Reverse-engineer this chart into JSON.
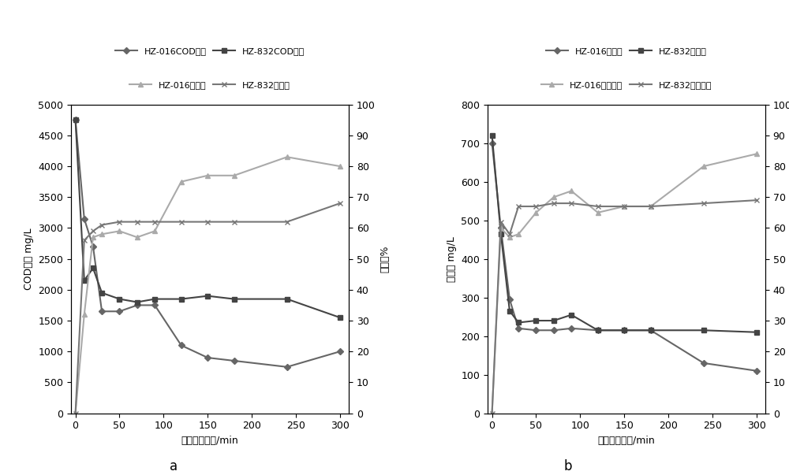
{
  "chart_a": {
    "xlabel": "静态吸附时间/min",
    "ylabel_left": "COD浓度 mg/L",
    "ylabel_right": "去除率%",
    "ylim_left": [
      0,
      5000
    ],
    "ylim_right": [
      0,
      100
    ],
    "yticks_left": [
      0,
      500,
      1000,
      1500,
      2000,
      2500,
      3000,
      3500,
      4000,
      4500,
      5000
    ],
    "yticks_right": [
      0,
      10,
      20,
      30,
      40,
      50,
      60,
      70,
      80,
      90,
      100
    ],
    "xticks": [
      0,
      50,
      100,
      150,
      200,
      250,
      300
    ],
    "xlim": [
      -5,
      310
    ],
    "legend_row1": [
      "HZ-016COD浓度",
      "HZ-832COD浓度"
    ],
    "legend_row2": [
      "HZ-016去除率",
      "HZ-832去除率"
    ],
    "hz016_cod_x": [
      0,
      10,
      20,
      30,
      50,
      70,
      90,
      120,
      150,
      180,
      240,
      300
    ],
    "hz016_cod_y": [
      4750,
      3150,
      2700,
      1650,
      1650,
      1750,
      1750,
      1100,
      900,
      850,
      750,
      1000
    ],
    "hz832_cod_x": [
      0,
      10,
      20,
      30,
      50,
      70,
      90,
      120,
      150,
      180,
      240,
      300
    ],
    "hz832_cod_y": [
      4750,
      2150,
      2350,
      1950,
      1850,
      1800,
      1850,
      1850,
      1900,
      1850,
      1850,
      1550
    ],
    "hz016_rem_x": [
      0,
      10,
      20,
      30,
      50,
      70,
      90,
      120,
      150,
      180,
      240,
      300
    ],
    "hz016_rem_y": [
      0,
      32,
      57,
      58,
      59,
      57,
      59,
      75,
      77,
      77,
      83,
      80
    ],
    "hz832_rem_x": [
      0,
      10,
      20,
      30,
      50,
      70,
      90,
      120,
      150,
      180,
      240,
      300
    ],
    "hz832_rem_y": [
      0,
      56,
      59,
      61,
      62,
      62,
      62,
      62,
      62,
      62,
      62,
      68
    ]
  },
  "chart_b": {
    "xlabel": "静态吸附时间/min",
    "ylabel_left": "酚浓度 mg/L",
    "ylabel_right": "去除率%",
    "ylim_left": [
      0,
      800
    ],
    "ylim_right": [
      0,
      100
    ],
    "yticks_left": [
      0,
      100,
      200,
      300,
      400,
      500,
      600,
      700,
      800
    ],
    "yticks_right": [
      0,
      10,
      20,
      30,
      40,
      50,
      60,
      70,
      80,
      90,
      100
    ],
    "xticks": [
      0,
      50,
      100,
      150,
      200,
      250,
      300
    ],
    "xlim": [
      -5,
      310
    ],
    "legend_row1": [
      "HZ-016酚浓度",
      "HZ-832酚浓度"
    ],
    "legend_row2": [
      "HZ-016酚去除率",
      "HZ-832酚去除率"
    ],
    "hz016_ph_x": [
      0,
      10,
      20,
      30,
      50,
      70,
      90,
      120,
      150,
      180,
      240,
      300
    ],
    "hz016_ph_y": [
      700,
      480,
      295,
      220,
      215,
      215,
      220,
      215,
      215,
      215,
      130,
      110
    ],
    "hz832_ph_x": [
      0,
      10,
      20,
      30,
      50,
      70,
      90,
      120,
      150,
      180,
      240,
      300
    ],
    "hz832_ph_y": [
      720,
      465,
      265,
      235,
      240,
      240,
      255,
      215,
      215,
      215,
      215,
      210
    ],
    "hz016_rem_x": [
      0,
      10,
      20,
      30,
      50,
      70,
      90,
      120,
      150,
      180,
      240,
      300
    ],
    "hz016_rem_y": [
      0,
      60,
      57,
      58,
      65,
      70,
      72,
      65,
      67,
      67,
      80,
      84
    ],
    "hz832_rem_x": [
      0,
      10,
      20,
      30,
      50,
      70,
      90,
      120,
      150,
      180,
      240,
      300
    ],
    "hz832_rem_y": [
      0,
      62,
      58,
      67,
      67,
      68,
      68,
      67,
      67,
      67,
      68,
      69
    ]
  },
  "label_a": "a",
  "label_b": "b",
  "color_dark_diamond": "#666666",
  "color_dark_square": "#444444",
  "color_light_triangle": "#aaaaaa",
  "color_mid_x": "#777777",
  "line_width": 1.5,
  "marker_size": 4,
  "font_size_tick": 9,
  "font_size_label": 9,
  "font_size_legend": 8,
  "font_size_ab": 12
}
